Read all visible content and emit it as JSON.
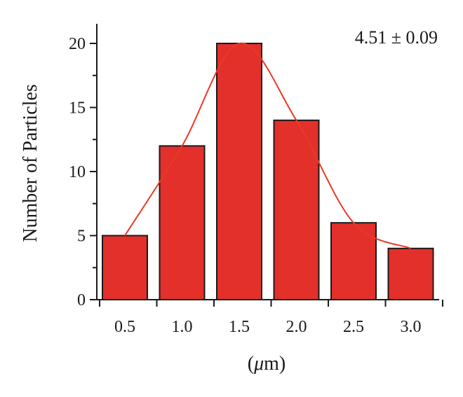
{
  "chart_data": {
    "type": "bar",
    "categories": [
      "0.5",
      "1.0",
      "1.5",
      "2.0",
      "2.5",
      "3.0"
    ],
    "values": [
      5,
      12,
      20,
      14,
      6,
      4
    ],
    "fit_curve": true,
    "ylabel": "Number of Particles",
    "xlabel_prefix": "(",
    "xlabel_unit_symbol": "μ",
    "xlabel_suffix": "m)",
    "annotation": "4.51 ± 0.09",
    "yticks": [
      "0",
      "5",
      "10",
      "15",
      "20"
    ],
    "ylim": [
      0,
      21.5
    ],
    "grid": false,
    "bar_color": "#e3302b",
    "bar_edge_color": "#1a1a1a",
    "curve_color": "#e83a24"
  }
}
